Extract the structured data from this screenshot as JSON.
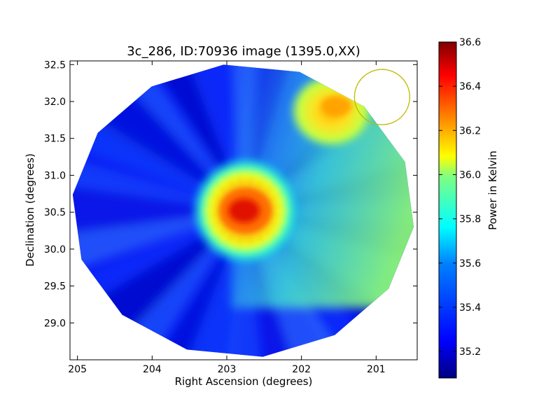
{
  "chart_data": {
    "type": "heatmap",
    "title": "3c_286, ID:70936 image (1395.0,XX)",
    "xlabel": "Right Ascension (degrees)",
    "ylabel": "Declination (degrees)",
    "xlim": [
      205.1,
      200.45
    ],
    "ylim": [
      28.5,
      32.55
    ],
    "x_ticks": [
      "205",
      "204",
      "203",
      "202",
      "201"
    ],
    "x_tick_values": [
      205,
      204,
      203,
      202,
      201
    ],
    "y_ticks": [
      "29.0",
      "29.5",
      "30.0",
      "30.5",
      "31.0",
      "31.5",
      "32.0",
      "32.5"
    ],
    "y_tick_values": [
      29.0,
      29.5,
      30.0,
      30.5,
      31.0,
      31.5,
      32.0,
      32.5
    ],
    "colorbar": {
      "label": "Power in Kelvin",
      "range": [
        35.08,
        36.6
      ],
      "ticks": [
        "35.2",
        "35.4",
        "35.6",
        "35.8",
        "36.0",
        "36.2",
        "36.4",
        "36.6"
      ],
      "tick_values": [
        35.2,
        35.4,
        35.6,
        35.8,
        36.0,
        36.2,
        36.4,
        36.6
      ],
      "colormap": "jet"
    },
    "field": {
      "center_ra": 202.78,
      "center_dec": 30.52,
      "background_level": 35.25
    },
    "sources": [
      {
        "ra": 202.75,
        "dec": 30.52,
        "peak": 36.6
      },
      {
        "ra": 201.55,
        "dec": 31.92,
        "peak": 36.1
      }
    ],
    "marker_circle": {
      "ra": 200.92,
      "dec": 32.06,
      "radius_deg": 0.37,
      "color": "#bbbb00"
    }
  }
}
